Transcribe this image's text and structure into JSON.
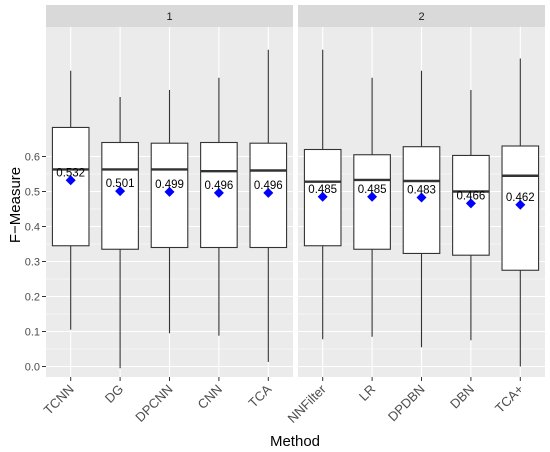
{
  "chart_data": {
    "type": "boxplot",
    "xlabel": "Method",
    "ylabel": "F−Measure",
    "ylim": [
      -0.03,
      0.97
    ],
    "yticks": [
      0.0,
      0.1,
      0.2,
      0.3,
      0.4,
      0.5,
      0.6
    ],
    "ytick_labels": [
      "0.0",
      "0.1",
      "0.2",
      "0.3",
      "0.4",
      "0.5",
      "0.6"
    ],
    "grid": true,
    "colors": {
      "panel_bg": "#ebebeb",
      "strip_bg": "#d9d9d9",
      "grid": "#ffffff",
      "box_fill": "#ffffff",
      "box_stroke": "#333333",
      "mean_marker": "#0000ff"
    },
    "mean_marker_shape": "diamond",
    "panels": [
      {
        "label": "1",
        "methods": [
          {
            "name": "TCNN",
            "min": 0.105,
            "q1": 0.345,
            "median": 0.563,
            "q3": 0.683,
            "max": 0.845,
            "mean": 0.532,
            "mean_label": "0.532"
          },
          {
            "name": "DG",
            "min": -0.005,
            "q1": 0.335,
            "median": 0.563,
            "q3": 0.64,
            "max": 0.77,
            "mean": 0.501,
            "mean_label": "0.501"
          },
          {
            "name": "DPCNN",
            "min": 0.095,
            "q1": 0.34,
            "median": 0.563,
            "q3": 0.638,
            "max": 0.79,
            "mean": 0.499,
            "mean_label": "0.499"
          },
          {
            "name": "CNN",
            "min": 0.088,
            "q1": 0.34,
            "median": 0.558,
            "q3": 0.64,
            "max": 0.825,
            "mean": 0.496,
            "mean_label": "0.496"
          },
          {
            "name": "TCA",
            "min": 0.013,
            "q1": 0.34,
            "median": 0.56,
            "q3": 0.638,
            "max": 0.905,
            "mean": 0.496,
            "mean_label": "0.496"
          }
        ]
      },
      {
        "label": "2",
        "methods": [
          {
            "name": "NNFilter",
            "min": 0.078,
            "q1": 0.345,
            "median": 0.528,
            "q3": 0.62,
            "max": 0.905,
            "mean": 0.485,
            "mean_label": "0.485"
          },
          {
            "name": "LR",
            "min": 0.085,
            "q1": 0.335,
            "median": 0.533,
            "q3": 0.605,
            "max": 0.825,
            "mean": 0.485,
            "mean_label": "0.485"
          },
          {
            "name": "DPDBN",
            "min": 0.055,
            "q1": 0.323,
            "median": 0.53,
            "q3": 0.628,
            "max": 0.845,
            "mean": 0.483,
            "mean_label": "0.483"
          },
          {
            "name": "DBN",
            "min": 0.075,
            "q1": 0.318,
            "median": 0.5,
            "q3": 0.603,
            "max": 0.79,
            "mean": 0.466,
            "mean_label": "0.466"
          },
          {
            "name": "TCA+",
            "min": 0.0,
            "q1": 0.275,
            "median": 0.545,
            "q3": 0.63,
            "max": 0.88,
            "mean": 0.462,
            "mean_label": "0.462"
          }
        ]
      }
    ]
  }
}
